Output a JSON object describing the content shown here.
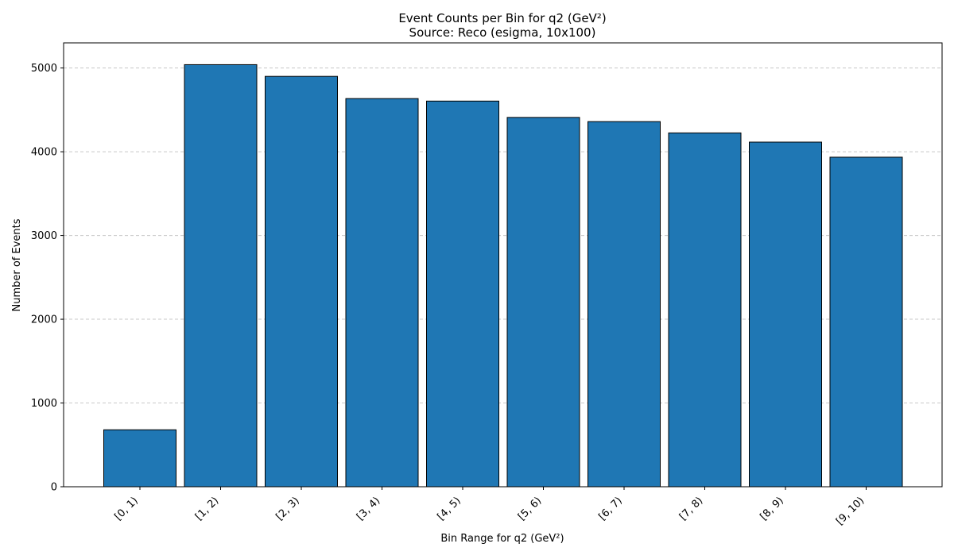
{
  "chart_data": {
    "type": "bar",
    "title": "Event Counts per Bin for q2 (GeV²)",
    "subtitle": "Source: Reco (esigma, 10x100)",
    "xlabel": "Bin Range for q2 (GeV²)",
    "ylabel": "Number of Events",
    "categories": [
      "[0, 1)",
      "[1, 2)",
      "[2, 3)",
      "[3, 4)",
      "[4, 5)",
      "[5, 6)",
      "[6, 7)",
      "[7, 8)",
      "[8, 9)",
      "[9, 10)"
    ],
    "values": [
      680,
      5040,
      4900,
      4635,
      4605,
      4410,
      4360,
      4225,
      4115,
      3935
    ],
    "ylim": [
      0,
      5300
    ],
    "yticks": [
      0,
      1000,
      2000,
      3000,
      4000,
      5000
    ],
    "grid": "horizontal dashed",
    "bar_color": "#1f77b4",
    "bar_edge_color": "#000000",
    "grid_color": "#c8c8c8"
  }
}
